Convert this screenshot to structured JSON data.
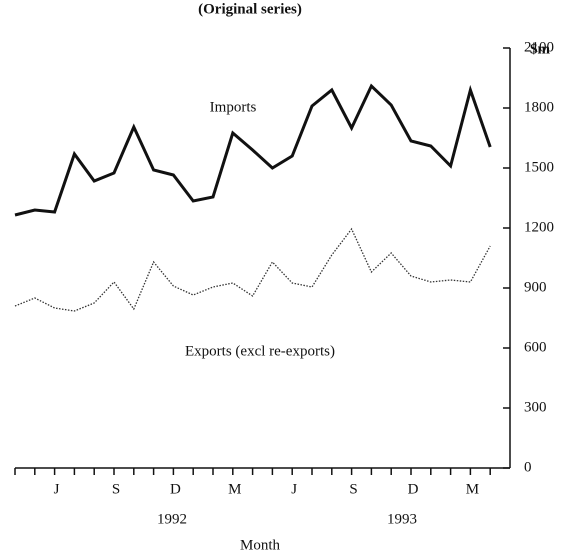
{
  "chart_data": {
    "type": "line",
    "title": "(Original series)",
    "y_unit": "$m",
    "x_label": "Month",
    "categories": [
      null,
      null,
      "J",
      null,
      null,
      "S",
      null,
      null,
      "D",
      null,
      null,
      "M",
      null,
      null,
      "J",
      null,
      null,
      "S",
      null,
      null,
      "D",
      null,
      null,
      "M",
      null
    ],
    "year_labels": [
      "1992",
      "1993"
    ],
    "series": [
      {
        "name": "Imports",
        "color": "#111111",
        "style": "solid",
        "values": [
          1265,
          1290,
          1280,
          1570,
          1435,
          1475,
          1705,
          1490,
          1465,
          1335,
          1355,
          1675,
          1590,
          1500,
          1560,
          1810,
          1890,
          1700,
          1910,
          1815,
          1635,
          1610,
          1510,
          1890,
          1605
        ]
      },
      {
        "name": "Exports (excl re-exports)",
        "color": "#333333",
        "style": "dotted",
        "values": [
          810,
          850,
          800,
          785,
          825,
          930,
          795,
          1030,
          910,
          865,
          905,
          925,
          860,
          1030,
          925,
          905,
          1065,
          1195,
          980,
          1075,
          960,
          930,
          940,
          930,
          1110
        ]
      }
    ],
    "ylim": [
      0,
      2100
    ],
    "yticks": [
      0,
      300,
      600,
      900,
      1200,
      1500,
      1800,
      2100
    ],
    "y_axis_side": "right",
    "grid": false
  }
}
